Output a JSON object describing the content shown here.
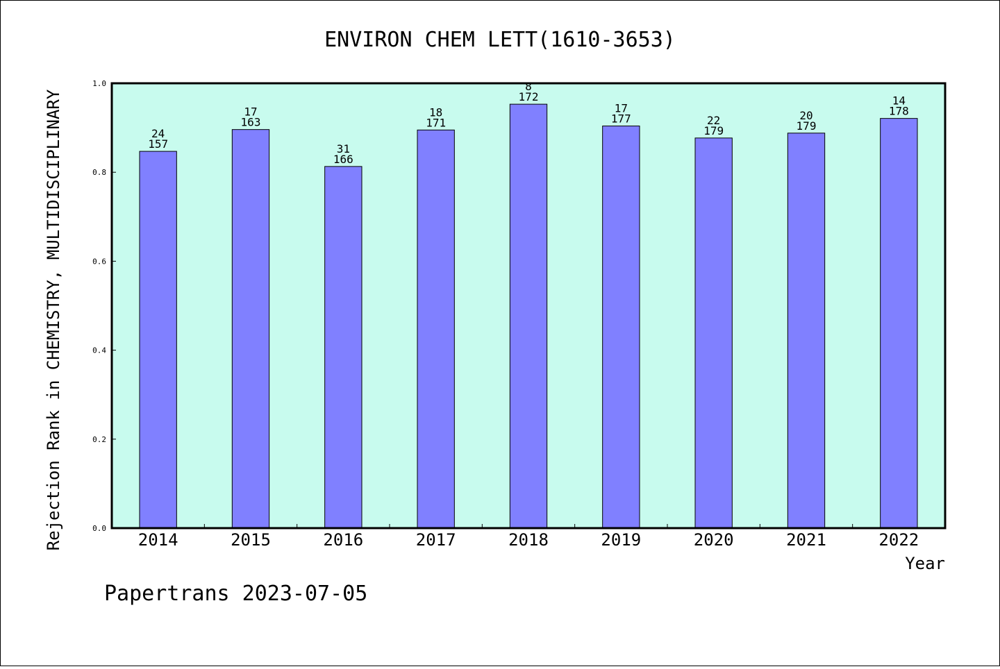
{
  "chart_data": {
    "type": "bar",
    "title": "ENVIRON CHEM LETT(1610-3653)",
    "xlabel": "Year",
    "ylabel": "Rejection Rank in CHEMISTRY, MULTIDISCIPLINARY",
    "ylim": [
      0,
      1.0
    ],
    "yticks": [
      "0.0",
      "0.2",
      "0.4",
      "0.6",
      "0.8",
      "1.0"
    ],
    "categories": [
      "2014",
      "2015",
      "2016",
      "2017",
      "2018",
      "2019",
      "2020",
      "2021",
      "2022"
    ],
    "values": [
      0.847,
      0.896,
      0.813,
      0.895,
      0.953,
      0.904,
      0.877,
      0.888,
      0.921
    ],
    "rank": [
      "24",
      "17",
      "31",
      "18",
      "8",
      "17",
      "22",
      "20",
      "14"
    ],
    "total": [
      "157",
      "163",
      "166",
      "171",
      "172",
      "177",
      "179",
      "179",
      "178"
    ],
    "colors": {
      "plot_background": "#c8fbee",
      "bar_fill": "#8080ff",
      "bar_stroke": "#000000"
    }
  },
  "footer": "Papertrans 2023-07-05"
}
